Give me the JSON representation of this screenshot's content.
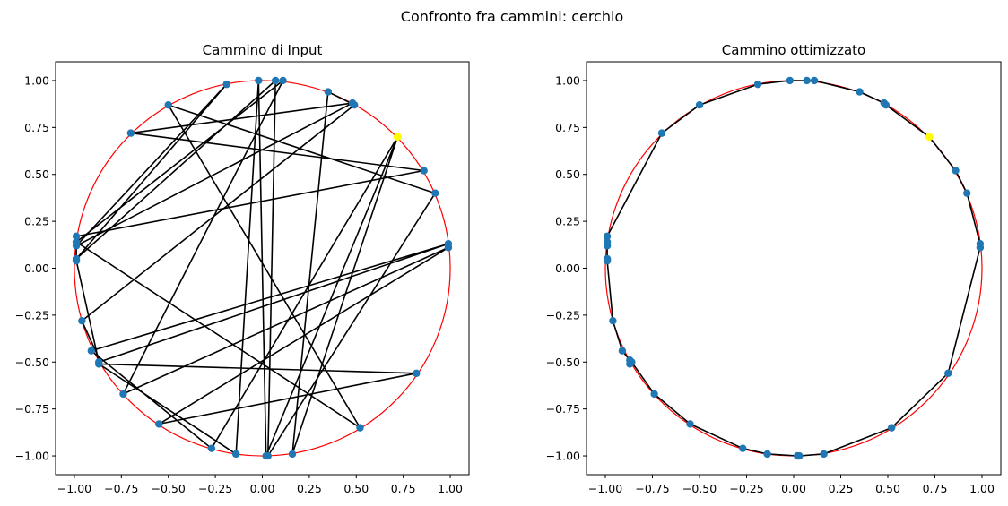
{
  "figure_title": "Confronto fra cammini: cerchio",
  "colors": {
    "circle": "#ff0000",
    "path": "#000000",
    "point": "#1f77b4",
    "start_point": "#ffff00"
  },
  "chart_data": [
    {
      "type": "scatter",
      "title": "Cammino di Input",
      "xlim": [
        -1.1,
        1.1
      ],
      "ylim": [
        -1.1,
        1.1
      ],
      "xticks": [
        -1.0,
        -0.75,
        -0.5,
        -0.25,
        0.0,
        0.25,
        0.5,
        0.75,
        1.0
      ],
      "yticks": [
        -1.0,
        -0.75,
        -0.5,
        -0.25,
        0.0,
        0.25,
        0.5,
        0.75,
        1.0
      ],
      "grid": false,
      "reference_circle": {
        "center": [
          0,
          0
        ],
        "radius": 1.0
      },
      "start_point": [
        0.72,
        0.7
      ],
      "path": [
        [
          0.72,
          0.7
        ],
        [
          -0.27,
          -0.96
        ],
        [
          -0.91,
          -0.44
        ],
        [
          0.99,
          0.13
        ],
        [
          -0.87,
          -0.5
        ],
        [
          -0.99,
          0.04
        ],
        [
          -0.99,
          0.17
        ],
        [
          0.86,
          0.52
        ],
        [
          -0.7,
          0.72
        ],
        [
          0.48,
          0.88
        ],
        [
          -0.99,
          0.12
        ],
        [
          -0.19,
          0.98
        ],
        [
          -0.99,
          0.05
        ],
        [
          0.07,
          1.0
        ],
        [
          0.03,
          -1.0
        ],
        [
          0.92,
          0.4
        ],
        [
          -0.5,
          0.87
        ],
        [
          0.52,
          -0.85
        ],
        [
          -0.99,
          0.14
        ],
        [
          0.11,
          1.0
        ],
        [
          -0.74,
          -0.67
        ],
        [
          0.99,
          0.11
        ],
        [
          -0.55,
          -0.83
        ],
        [
          0.82,
          -0.56
        ],
        [
          -0.87,
          -0.51
        ],
        [
          -0.14,
          -0.99
        ],
        [
          -0.02,
          1.0
        ],
        [
          0.02,
          -1.0
        ],
        [
          0.72,
          0.7
        ],
        [
          0.16,
          -0.99
        ],
        [
          0.35,
          0.94
        ],
        [
          0.49,
          0.87
        ],
        [
          -0.96,
          -0.28
        ],
        [
          -0.86,
          -0.5
        ]
      ]
    },
    {
      "type": "scatter",
      "title": "Cammino ottimizzato",
      "xlim": [
        -1.1,
        1.1
      ],
      "ylim": [
        -1.1,
        1.1
      ],
      "xticks": [
        -1.0,
        -0.75,
        -0.5,
        -0.25,
        0.0,
        0.25,
        0.5,
        0.75,
        1.0
      ],
      "yticks": [
        -1.0,
        -0.75,
        -0.5,
        -0.25,
        0.0,
        0.25,
        0.5,
        0.75,
        1.0
      ],
      "grid": false,
      "reference_circle": {
        "center": [
          0,
          0
        ],
        "radius": 1.0
      },
      "start_point": [
        0.72,
        0.7
      ],
      "path": [
        [
          0.72,
          0.7
        ],
        [
          0.86,
          0.52
        ],
        [
          0.92,
          0.4
        ],
        [
          0.99,
          0.13
        ],
        [
          0.99,
          0.11
        ],
        [
          0.82,
          -0.56
        ],
        [
          0.52,
          -0.85
        ],
        [
          0.16,
          -0.99
        ],
        [
          0.03,
          -1.0
        ],
        [
          0.02,
          -1.0
        ],
        [
          -0.14,
          -0.99
        ],
        [
          -0.27,
          -0.96
        ],
        [
          -0.55,
          -0.83
        ],
        [
          -0.74,
          -0.67
        ],
        [
          -0.86,
          -0.5
        ],
        [
          -0.87,
          -0.51
        ],
        [
          -0.87,
          -0.49
        ],
        [
          -0.91,
          -0.44
        ],
        [
          -0.96,
          -0.28
        ],
        [
          -0.99,
          0.04
        ],
        [
          -0.99,
          0.05
        ],
        [
          -0.99,
          0.12
        ],
        [
          -0.99,
          0.14
        ],
        [
          -0.99,
          0.17
        ],
        [
          -0.7,
          0.72
        ],
        [
          -0.5,
          0.87
        ],
        [
          -0.19,
          0.98
        ],
        [
          -0.02,
          1.0
        ],
        [
          0.07,
          1.0
        ],
        [
          0.11,
          1.0
        ],
        [
          0.35,
          0.94
        ],
        [
          0.48,
          0.88
        ],
        [
          0.49,
          0.87
        ],
        [
          0.72,
          0.7
        ]
      ]
    }
  ]
}
